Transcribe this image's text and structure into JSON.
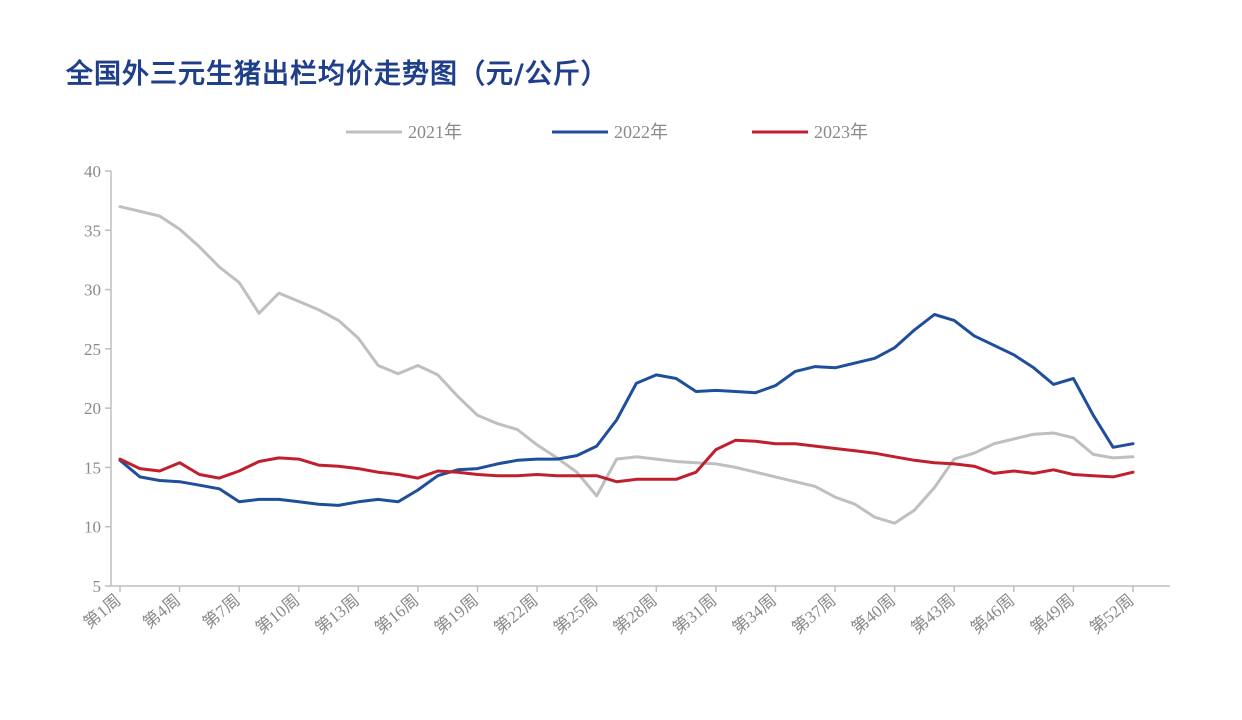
{
  "chart_data": {
    "type": "line",
    "title": "全国外三元生猪出栏均价走势图（元/公斤）",
    "ylim": [
      5,
      40
    ],
    "yticks": [
      5,
      10,
      15,
      20,
      25,
      30,
      35,
      40
    ],
    "x": [
      1,
      2,
      3,
      4,
      5,
      6,
      7,
      8,
      9,
      10,
      11,
      12,
      13,
      14,
      15,
      16,
      17,
      18,
      19,
      20,
      21,
      22,
      23,
      24,
      25,
      26,
      27,
      28,
      29,
      30,
      31,
      32,
      33,
      34,
      35,
      36,
      37,
      38,
      39,
      40,
      41,
      42,
      43,
      44,
      45,
      46,
      47,
      48,
      49,
      50,
      51,
      52
    ],
    "x_tick_labels": [
      "第1周",
      "第4周",
      "第7周",
      "第10周",
      "第13周",
      "第16周",
      "第19周",
      "第22周",
      "第25周",
      "第28周",
      "第31周",
      "第34周",
      "第37周",
      "第40周",
      "第43周",
      "第46周",
      "第49周",
      "第52周"
    ],
    "x_tick_weeks": [
      1,
      4,
      7,
      10,
      13,
      16,
      19,
      22,
      25,
      28,
      31,
      34,
      37,
      40,
      43,
      46,
      49,
      52
    ],
    "legend_position": "top",
    "grid": false,
    "series": [
      {
        "name": "2021年",
        "color": "#bfbfbf",
        "values": [
          37.0,
          36.6,
          36.2,
          35.1,
          33.6,
          31.9,
          30.6,
          28.0,
          29.7,
          29.0,
          28.3,
          27.4,
          25.9,
          23.6,
          22.9,
          23.6,
          22.8,
          21.0,
          19.4,
          18.7,
          18.2,
          16.9,
          15.8,
          14.6,
          12.6,
          15.7,
          15.9,
          15.7,
          15.5,
          15.4,
          15.3,
          15.0,
          14.6,
          14.2,
          13.8,
          13.4,
          12.5,
          11.9,
          10.8,
          10.3,
          11.4,
          13.3,
          15.7,
          16.2,
          17.0,
          17.4,
          17.8,
          17.9,
          17.5,
          16.1,
          15.8,
          15.9
        ]
      },
      {
        "name": "2022年",
        "color": "#1f4e9c",
        "values": [
          15.6,
          14.2,
          13.9,
          13.8,
          13.5,
          13.2,
          12.1,
          12.3,
          12.3,
          12.1,
          11.9,
          11.8,
          12.1,
          12.3,
          12.1,
          13.1,
          14.3,
          14.8,
          14.9,
          15.3,
          15.6,
          15.7,
          15.7,
          16.0,
          16.8,
          19.0,
          22.1,
          22.8,
          22.5,
          21.4,
          21.5,
          21.4,
          21.3,
          21.9,
          23.1,
          23.5,
          23.4,
          23.8,
          24.2,
          25.1,
          26.6,
          27.9,
          27.4,
          26.1,
          25.3,
          24.5,
          23.4,
          22.0,
          22.5,
          19.4,
          16.7,
          17.0
        ]
      },
      {
        "name": "2023年",
        "color": "#c0202e",
        "values": [
          15.7,
          14.9,
          14.7,
          15.4,
          14.4,
          14.1,
          14.7,
          15.5,
          15.8,
          15.7,
          15.2,
          15.1,
          14.9,
          14.6,
          14.4,
          14.1,
          14.7,
          14.6,
          14.4,
          14.3,
          14.3,
          14.4,
          14.3,
          14.3,
          14.3,
          13.8,
          14.0,
          14.0,
          14.0,
          14.6,
          16.5,
          17.3,
          17.2,
          17.0,
          17.0,
          16.8,
          16.6,
          16.4,
          16.2,
          15.9,
          15.6,
          15.4,
          15.3,
          15.1,
          14.5,
          14.7,
          14.5,
          14.8,
          14.4,
          14.3,
          14.2,
          14.6
        ]
      }
    ]
  }
}
